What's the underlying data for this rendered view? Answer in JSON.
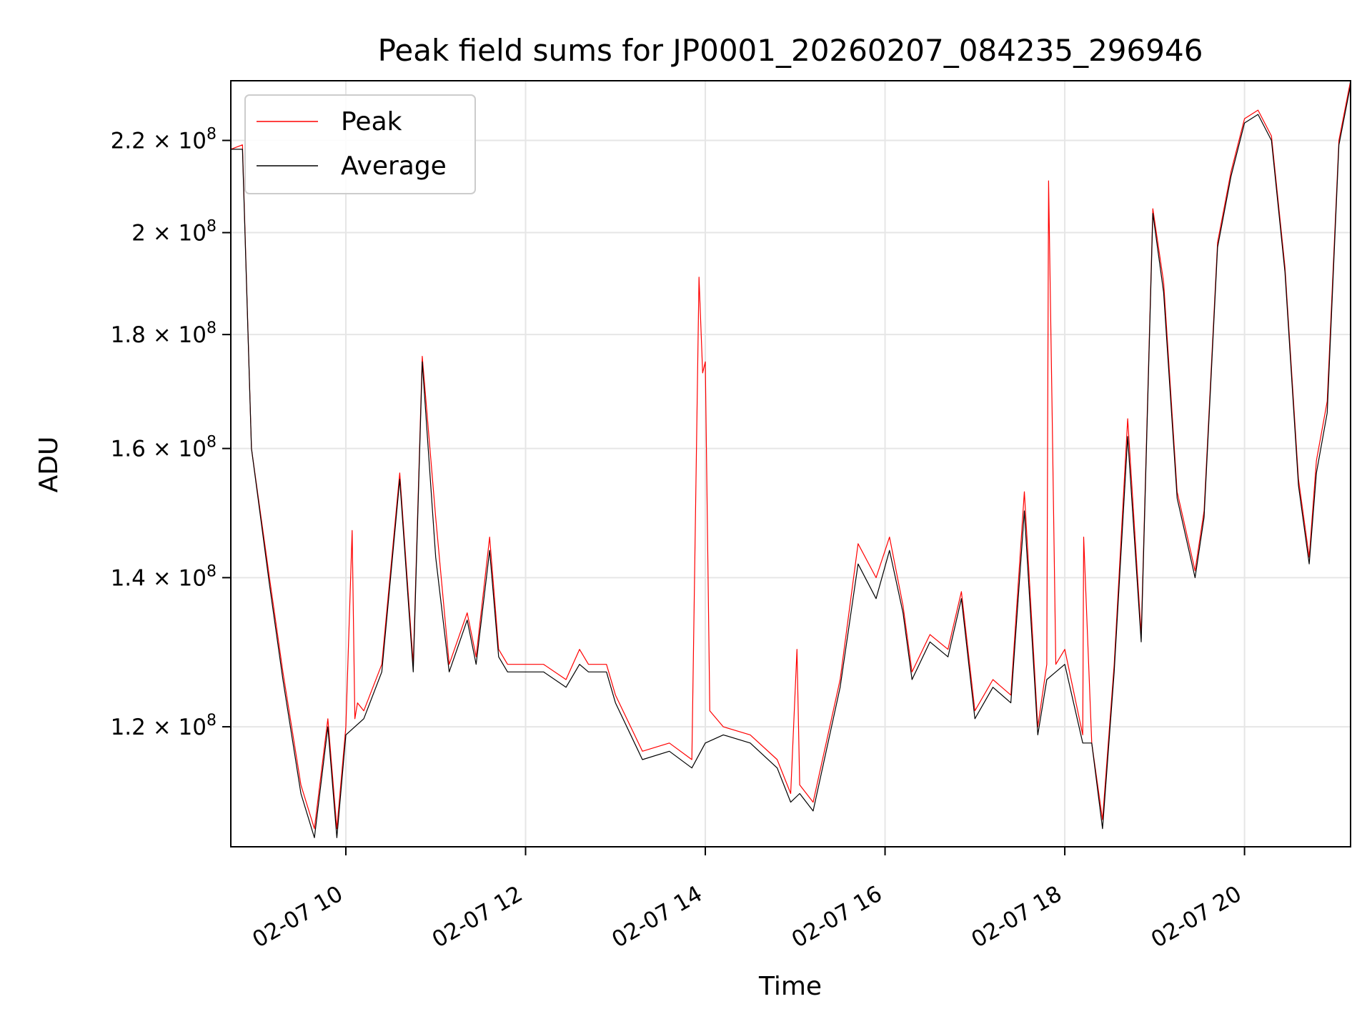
{
  "chart_data": {
    "type": "line",
    "title": "Peak field sums for JP0001_20260207_084235_296946",
    "xlabel": "Time",
    "ylabel": "ADU",
    "scale": "log",
    "grid": true,
    "legend_position": "top-left",
    "x_unit": "hours",
    "xlim": [
      8.72,
      21.18
    ],
    "ylim": [
      106000000,
      234000000
    ],
    "x_ticks": [
      {
        "value": 10,
        "label": "02-07 10"
      },
      {
        "value": 12,
        "label": "02-07 12"
      },
      {
        "value": 14,
        "label": "02-07 14"
      },
      {
        "value": 16,
        "label": "02-07 16"
      },
      {
        "value": 18,
        "label": "02-07 18"
      },
      {
        "value": 20,
        "label": "02-07 20"
      }
    ],
    "y_ticks": [
      {
        "value": 120000000,
        "base": "1.2",
        "exp": "8"
      },
      {
        "value": 140000000,
        "base": "1.4",
        "exp": "8"
      },
      {
        "value": 160000000,
        "base": "1.6",
        "exp": "8"
      },
      {
        "value": 180000000,
        "base": "1.8",
        "exp": "8"
      },
      {
        "value": 200000000,
        "base": "2",
        "exp": "8"
      },
      {
        "value": 220000000,
        "base": "2.2",
        "exp": "8"
      }
    ],
    "series": [
      {
        "name": "Peak",
        "color": "#ff0000",
        "line_width": 1.2,
        "x": [
          8.72,
          8.85,
          8.95,
          9.15,
          9.3,
          9.5,
          9.65,
          9.8,
          9.9,
          10.0,
          10.07,
          10.1,
          10.13,
          10.2,
          10.4,
          10.6,
          10.75,
          10.85,
          11.0,
          11.15,
          11.35,
          11.45,
          11.6,
          11.7,
          11.8,
          12.2,
          12.45,
          12.6,
          12.7,
          12.9,
          13.0,
          13.3,
          13.6,
          13.85,
          13.93,
          13.97,
          14.0,
          14.05,
          14.2,
          14.5,
          14.8,
          14.95,
          15.02,
          15.05,
          15.2,
          15.5,
          15.7,
          15.9,
          16.05,
          16.2,
          16.3,
          16.5,
          16.7,
          16.85,
          17.0,
          17.2,
          17.4,
          17.55,
          17.7,
          17.8,
          17.82,
          17.86,
          17.9,
          18.0,
          18.2,
          18.21,
          18.3,
          18.42,
          18.55,
          18.7,
          18.85,
          18.98,
          19.1,
          19.25,
          19.45,
          19.55,
          19.7,
          19.85,
          20.0,
          20.15,
          20.3,
          20.45,
          20.6,
          20.72,
          20.8,
          20.92,
          21.05,
          21.18
        ],
        "y": [
          218000000,
          219000000,
          160000000,
          140000000,
          127000000,
          113000000,
          108000000,
          121000000,
          108000000,
          120000000,
          147000000,
          121000000,
          123000000,
          122000000,
          128000000,
          156000000,
          128000000,
          176000000,
          149000000,
          128000000,
          135000000,
          129000000,
          146000000,
          130000000,
          128000000,
          128000000,
          126000000,
          130000000,
          128000000,
          128000000,
          124000000,
          117000000,
          118000000,
          116000000,
          191000000,
          173000000,
          175000000,
          122000000,
          120000000,
          119000000,
          116000000,
          112000000,
          130000000,
          113000000,
          111000000,
          126000000,
          145000000,
          140000000,
          146000000,
          136000000,
          127000000,
          132000000,
          130000000,
          138000000,
          122000000,
          126000000,
          124000000,
          153000000,
          120000000,
          128000000,
          211000000,
          165000000,
          128000000,
          130000000,
          119000000,
          146000000,
          118000000,
          109000000,
          128000000,
          165000000,
          132000000,
          205000000,
          190000000,
          153000000,
          141000000,
          150000000,
          198000000,
          213000000,
          225000000,
          227000000,
          221000000,
          193000000,
          155000000,
          143000000,
          158000000,
          168000000,
          220000000,
          234000000
        ]
      },
      {
        "name": "Average",
        "color": "#000000",
        "line_width": 1.2,
        "x": [
          8.72,
          8.85,
          8.95,
          9.15,
          9.3,
          9.5,
          9.65,
          9.8,
          9.9,
          10.0,
          10.2,
          10.4,
          10.6,
          10.75,
          10.85,
          11.0,
          11.15,
          11.35,
          11.45,
          11.6,
          11.7,
          11.8,
          12.2,
          12.45,
          12.6,
          12.7,
          12.9,
          13.0,
          13.3,
          13.6,
          13.85,
          14.0,
          14.2,
          14.5,
          14.8,
          14.95,
          15.05,
          15.2,
          15.5,
          15.7,
          15.9,
          16.05,
          16.2,
          16.3,
          16.5,
          16.7,
          16.85,
          17.0,
          17.2,
          17.4,
          17.55,
          17.7,
          17.8,
          17.9,
          18.0,
          18.2,
          18.3,
          18.42,
          18.55,
          18.7,
          18.85,
          18.98,
          19.1,
          19.25,
          19.45,
          19.55,
          19.7,
          19.85,
          20.0,
          20.15,
          20.3,
          20.45,
          20.6,
          20.72,
          20.8,
          20.92,
          21.05,
          21.18
        ],
        "y": [
          218000000,
          218000000,
          160000000,
          139000000,
          126000000,
          112000000,
          107000000,
          120000000,
          107000000,
          119000000,
          121000000,
          127000000,
          155000000,
          127000000,
          175000000,
          143000000,
          127000000,
          134000000,
          128000000,
          144000000,
          129000000,
          127000000,
          127000000,
          125000000,
          128000000,
          127000000,
          127000000,
          123000000,
          116000000,
          117000000,
          115000000,
          118000000,
          119000000,
          118000000,
          115000000,
          111000000,
          112000000,
          110000000,
          125000000,
          142000000,
          137000000,
          144000000,
          135000000,
          126000000,
          131000000,
          129000000,
          137000000,
          121000000,
          125000000,
          123000000,
          150000000,
          119000000,
          126000000,
          127000000,
          128000000,
          118000000,
          118000000,
          108000000,
          127000000,
          162000000,
          131000000,
          204000000,
          188000000,
          152000000,
          140000000,
          149000000,
          197000000,
          212000000,
          224000000,
          226000000,
          220000000,
          192000000,
          154000000,
          142000000,
          156000000,
          166000000,
          219000000,
          233000000
        ]
      }
    ]
  }
}
